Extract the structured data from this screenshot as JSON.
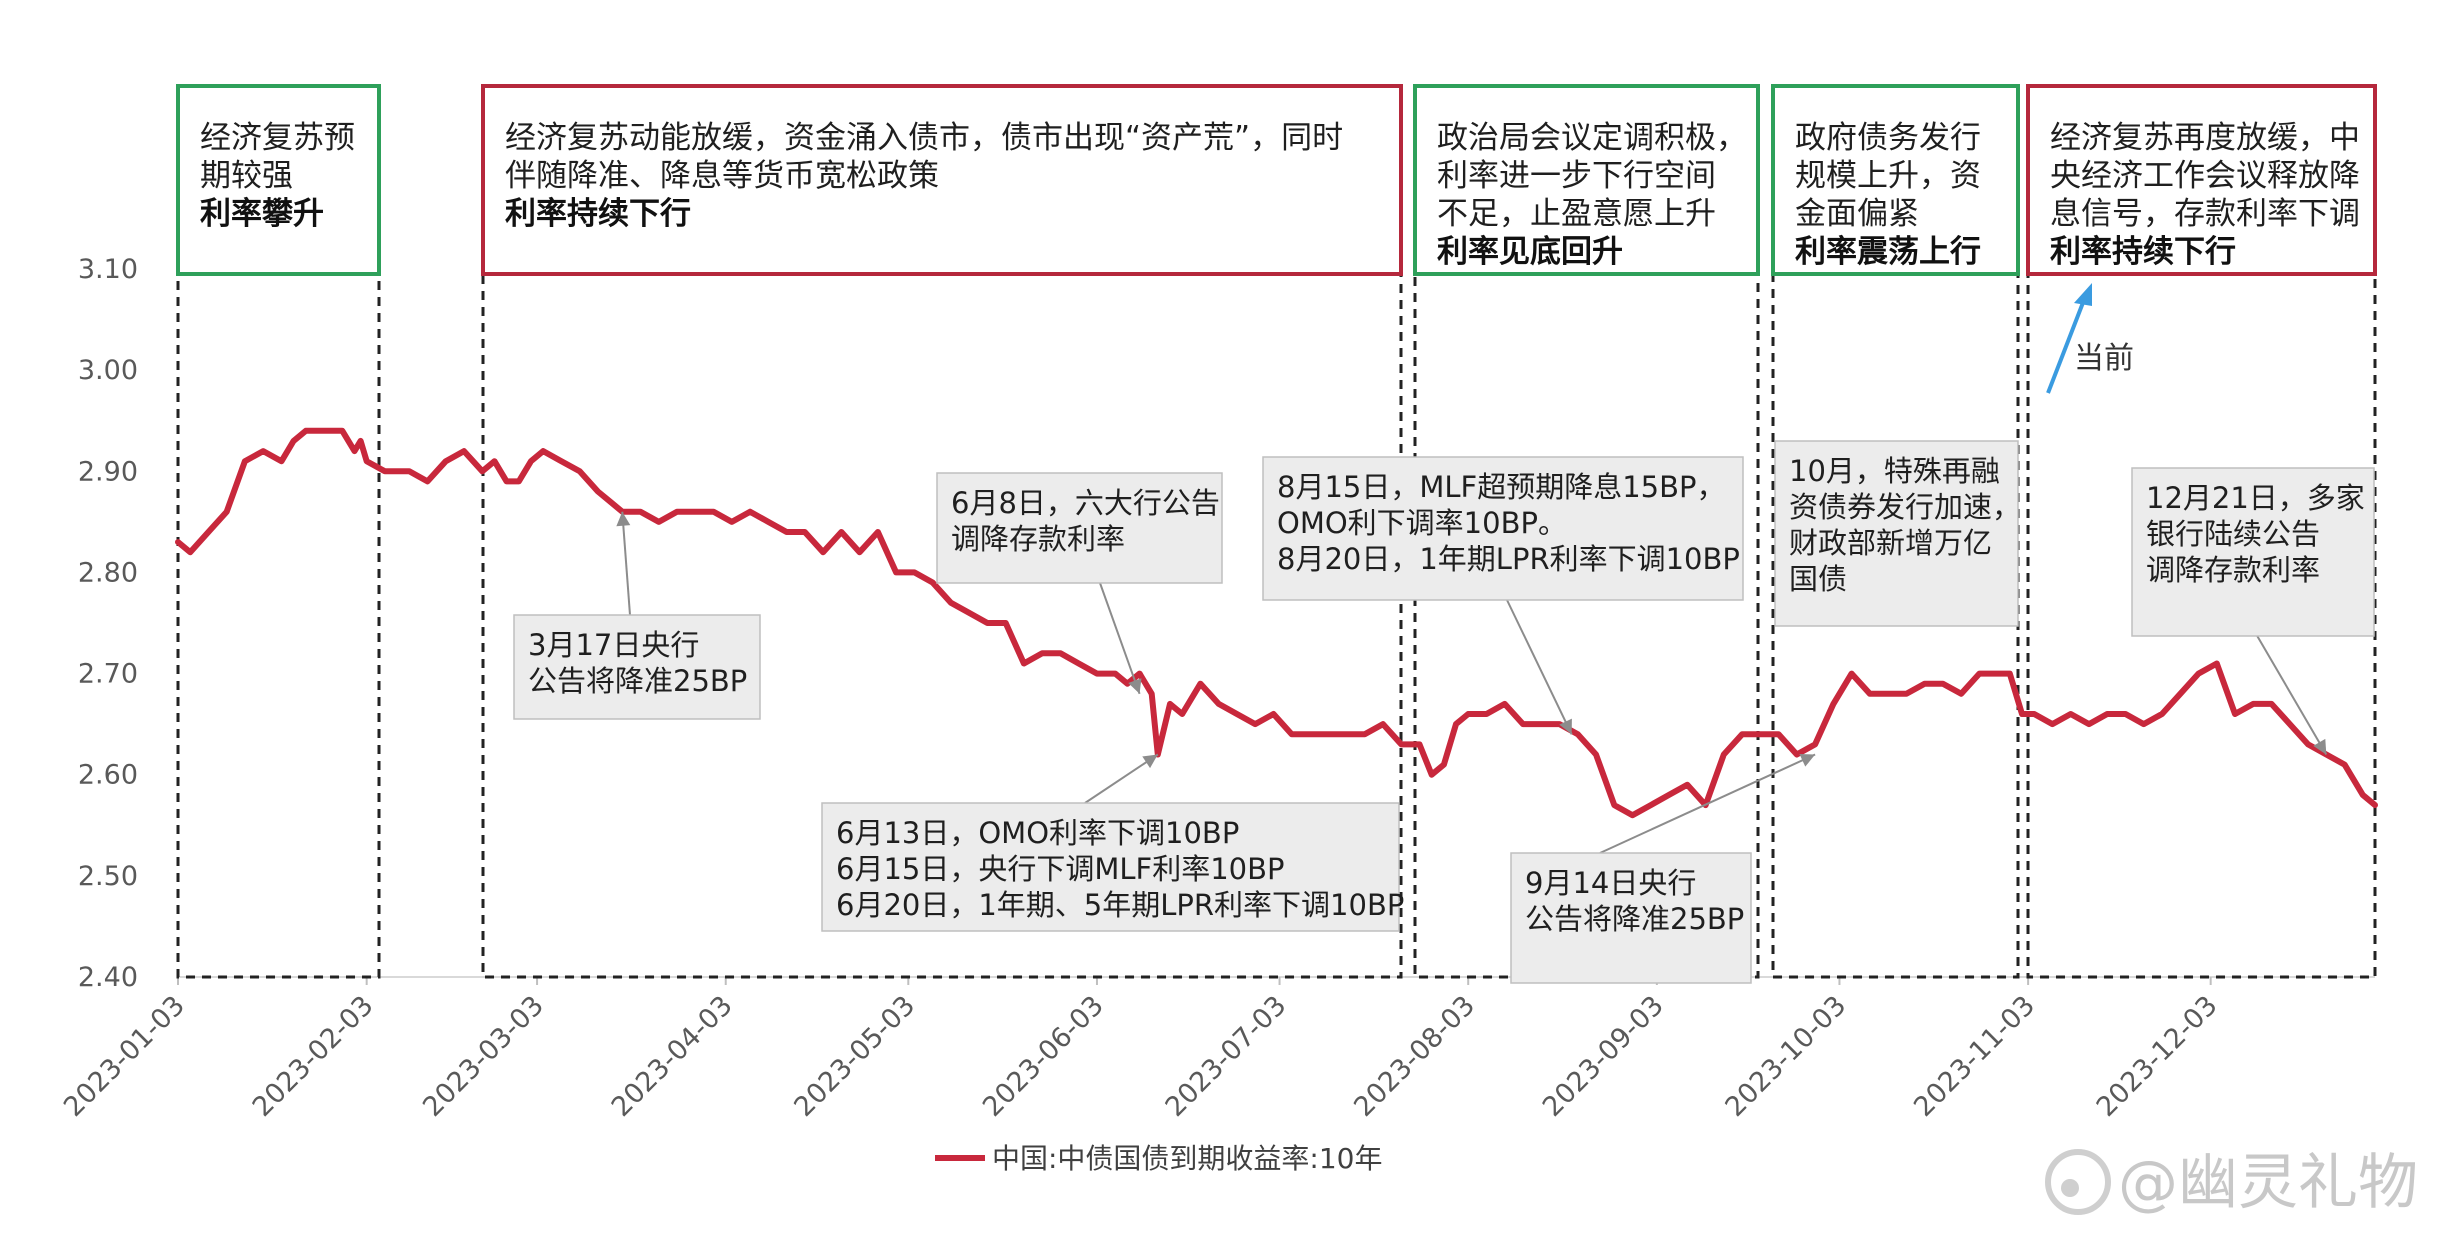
{
  "chart_data": {
    "type": "line",
    "title": "",
    "xlabel": "",
    "ylabel": "",
    "ylim": [
      2.4,
      3.1
    ],
    "yticks": [
      "2.40",
      "2.50",
      "2.60",
      "2.70",
      "2.80",
      "2.90",
      "3.00",
      "3.10"
    ],
    "xticks": [
      "2023-01-03",
      "2023-02-03",
      "2023-03-03",
      "2023-04-03",
      "2023-05-03",
      "2023-06-03",
      "2023-07-03",
      "2023-08-03",
      "2023-09-03",
      "2023-10-03",
      "2023-11-03",
      "2023-12-03"
    ],
    "grid": false,
    "legend_position": "bottom",
    "series": [
      {
        "name": "中国:中债国债到期收益率:10年",
        "color": "#c8283c",
        "x": [
          "2023-01-03",
          "2023-01-05",
          "2023-01-08",
          "2023-01-11",
          "2023-01-14",
          "2023-01-17",
          "2023-01-20",
          "2023-01-22",
          "2023-01-24",
          "2023-01-27",
          "2023-01-30",
          "2023-02-01",
          "2023-02-02",
          "2023-02-03",
          "2023-02-06",
          "2023-02-08",
          "2023-02-10",
          "2023-02-13",
          "2023-02-16",
          "2023-02-19",
          "2023-02-22",
          "2023-02-24",
          "2023-02-26",
          "2023-02-28",
          "2023-03-02",
          "2023-03-04",
          "2023-03-07",
          "2023-03-10",
          "2023-03-13",
          "2023-03-15",
          "2023-03-17",
          "2023-03-20",
          "2023-03-23",
          "2023-03-26",
          "2023-03-29",
          "2023-04-01",
          "2023-04-04",
          "2023-04-07",
          "2023-04-10",
          "2023-04-13",
          "2023-04-16",
          "2023-04-19",
          "2023-04-22",
          "2023-04-25",
          "2023-04-28",
          "2023-05-01",
          "2023-05-04",
          "2023-05-07",
          "2023-05-10",
          "2023-05-13",
          "2023-05-16",
          "2023-05-19",
          "2023-05-22",
          "2023-05-25",
          "2023-05-28",
          "2023-05-31",
          "2023-06-03",
          "2023-06-06",
          "2023-06-08",
          "2023-06-10",
          "2023-06-12",
          "2023-06-13",
          "2023-06-15",
          "2023-06-17",
          "2023-06-20",
          "2023-06-23",
          "2023-06-26",
          "2023-06-29",
          "2023-07-02",
          "2023-07-05",
          "2023-07-08",
          "2023-07-11",
          "2023-07-14",
          "2023-07-17",
          "2023-07-20",
          "2023-07-23",
          "2023-07-26",
          "2023-07-28",
          "2023-07-30",
          "2023-08-01",
          "2023-08-03",
          "2023-08-06",
          "2023-08-09",
          "2023-08-12",
          "2023-08-15",
          "2023-08-18",
          "2023-08-21",
          "2023-08-24",
          "2023-08-27",
          "2023-08-30",
          "2023-09-02",
          "2023-09-05",
          "2023-09-08",
          "2023-09-11",
          "2023-09-14",
          "2023-09-17",
          "2023-09-20",
          "2023-09-23",
          "2023-09-26",
          "2023-09-29",
          "2023-10-02",
          "2023-10-05",
          "2023-10-08",
          "2023-10-11",
          "2023-10-14",
          "2023-10-17",
          "2023-10-20",
          "2023-10-23",
          "2023-10-26",
          "2023-10-29",
          "2023-10-31",
          "2023-11-02",
          "2023-11-04",
          "2023-11-07",
          "2023-11-10",
          "2023-11-13",
          "2023-11-16",
          "2023-11-19",
          "2023-11-22",
          "2023-11-25",
          "2023-11-28",
          "2023-12-01",
          "2023-12-04",
          "2023-12-07",
          "2023-12-10",
          "2023-12-13",
          "2023-12-16",
          "2023-12-19",
          "2023-12-22",
          "2023-12-25",
          "2023-12-28",
          "2023-12-30"
        ],
        "y": [
          2.83,
          2.82,
          2.84,
          2.86,
          2.91,
          2.92,
          2.91,
          2.93,
          2.94,
          2.94,
          2.94,
          2.92,
          2.93,
          2.91,
          2.9,
          2.9,
          2.9,
          2.89,
          2.91,
          2.92,
          2.9,
          2.91,
          2.89,
          2.89,
          2.91,
          2.92,
          2.91,
          2.9,
          2.88,
          2.87,
          2.86,
          2.86,
          2.85,
          2.86,
          2.86,
          2.86,
          2.85,
          2.86,
          2.85,
          2.84,
          2.84,
          2.82,
          2.84,
          2.82,
          2.84,
          2.8,
          2.8,
          2.79,
          2.77,
          2.76,
          2.75,
          2.75,
          2.71,
          2.72,
          2.72,
          2.71,
          2.7,
          2.7,
          2.69,
          2.7,
          2.68,
          2.62,
          2.67,
          2.66,
          2.69,
          2.67,
          2.66,
          2.65,
          2.66,
          2.64,
          2.64,
          2.64,
          2.64,
          2.64,
          2.65,
          2.63,
          2.63,
          2.6,
          2.61,
          2.65,
          2.66,
          2.66,
          2.67,
          2.65,
          2.65,
          2.65,
          2.64,
          2.62,
          2.57,
          2.56,
          2.57,
          2.58,
          2.59,
          2.57,
          2.62,
          2.64,
          2.64,
          2.64,
          2.62,
          2.63,
          2.67,
          2.7,
          2.68,
          2.68,
          2.68,
          2.69,
          2.69,
          2.68,
          2.7,
          2.7,
          2.7,
          2.66,
          2.66,
          2.65,
          2.66,
          2.65,
          2.66,
          2.66,
          2.65,
          2.66,
          2.68,
          2.7,
          2.71,
          2.66,
          2.67,
          2.67,
          2.65,
          2.63,
          2.62,
          2.61,
          2.58,
          2.57
        ]
      }
    ],
    "periods": [
      {
        "lines": [
          "经济复苏预",
          "期较强"
        ],
        "emphasis": "利率攀升",
        "color": "#2ea05a"
      },
      {
        "lines": [
          "经济复苏动能放缓，资金涌入债市，债市出现“资产荒”，同时",
          "伴随降准、降息等货币宽松政策"
        ],
        "emphasis": "利率持续下行",
        "color": "#b5283c"
      },
      {
        "lines": [
          "政治局会议定调积极，",
          "利率进一步下行空间",
          "不足，止盈意愿上升"
        ],
        "emphasis": "利率见底回升",
        "color": "#2ea05a"
      },
      {
        "lines": [
          "政府债务发行",
          "规模上升，资",
          "金面偏紧"
        ],
        "emphasis": "利率震荡上行",
        "color": "#2ea05a"
      },
      {
        "lines": [
          "经济复苏再度放缓，中",
          "央经济工作会议释放降",
          "息信号，存款利率下调"
        ],
        "emphasis": "利率持续下行",
        "color": "#b5283c"
      }
    ],
    "annotations": [
      {
        "lines": [
          "3月17日央行",
          "公告将降准25BP"
        ],
        "target_x": "2023-03-17",
        "target_y": 2.86
      },
      {
        "lines": [
          "6月8日，六大行公告",
          "调降存款利率"
        ],
        "target_x": "2023-06-10",
        "target_y": 2.68
      },
      {
        "lines": [
          "6月13日，OMO利率下调10BP",
          "6月15日，央行下调MLF利率10BP",
          "6月20日，1年期、5年期LPR利率下调10BP"
        ],
        "target_x": "2023-06-13",
        "target_y": 2.62
      },
      {
        "lines": [
          "8月15日，MLF超预期降息15BP，",
          "OMO利下调率10BP。",
          "8月20日，1年期LPR利率下调10BP"
        ],
        "target_x": "2023-08-20",
        "target_y": 2.64
      },
      {
        "lines": [
          "9月14日央行",
          "公告将降准25BP"
        ],
        "target_x": "2023-09-29",
        "target_y": 2.62
      },
      {
        "lines": [
          "10月，特殊再融",
          "资债券发行加速，",
          "财政部新增万亿",
          "国债"
        ],
        "target_x": null,
        "target_y": null
      },
      {
        "lines": [
          "12月21日，多家",
          "银行陆续公告",
          "调降存款利率"
        ],
        "target_x": "2023-12-22",
        "target_y": 2.62
      }
    ],
    "current_label": "当前"
  },
  "watermark": "@幽灵礼物"
}
